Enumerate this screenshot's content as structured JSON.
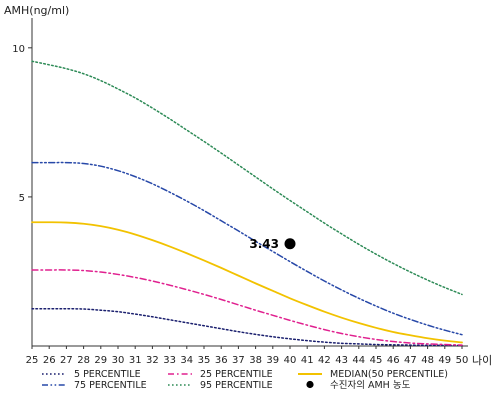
{
  "chart_data": {
    "type": "line",
    "ylabel": "AMH(ng/ml)",
    "xlabel": "나이",
    "x": [
      25,
      26,
      27,
      28,
      29,
      30,
      31,
      32,
      33,
      34,
      35,
      36,
      37,
      38,
      39,
      40,
      41,
      42,
      43,
      44,
      45,
      46,
      47,
      48,
      49,
      50
    ],
    "xlim": [
      25,
      50
    ],
    "ylim": [
      0,
      11
    ],
    "yticks": [
      5,
      10
    ],
    "grid": false,
    "legend_position": "bottom",
    "series": [
      {
        "name": "5 PERCENTILE",
        "color": "#1a1f6e",
        "dash": "dotted",
        "values": [
          1.25,
          1.25,
          1.25,
          1.24,
          1.2,
          1.15,
          1.07,
          0.98,
          0.88,
          0.78,
          0.68,
          0.58,
          0.48,
          0.39,
          0.31,
          0.24,
          0.18,
          0.13,
          0.09,
          0.07,
          0.05,
          0.04,
          0.03,
          0.02,
          0.02,
          0.02
        ]
      },
      {
        "name": "25 PERCENTILE",
        "color": "#e0208f",
        "dash": "dashdot",
        "values": [
          2.55,
          2.55,
          2.55,
          2.53,
          2.48,
          2.4,
          2.3,
          2.18,
          2.04,
          1.89,
          1.73,
          1.56,
          1.38,
          1.2,
          1.03,
          0.86,
          0.7,
          0.55,
          0.42,
          0.31,
          0.22,
          0.15,
          0.1,
          0.07,
          0.05,
          0.03
        ]
      },
      {
        "name": "MEDIAN(50 PERCENTILE)",
        "color": "#f2c200",
        "dash": "solid",
        "values": [
          4.15,
          4.15,
          4.14,
          4.1,
          4.02,
          3.9,
          3.74,
          3.55,
          3.34,
          3.11,
          2.87,
          2.62,
          2.36,
          2.1,
          1.85,
          1.6,
          1.37,
          1.15,
          0.95,
          0.77,
          0.61,
          0.47,
          0.36,
          0.26,
          0.18,
          0.12
        ]
      },
      {
        "name": "75 PERCENTILE",
        "color": "#2748a8",
        "dash": "dashdotdot",
        "values": [
          6.15,
          6.15,
          6.15,
          6.12,
          6.03,
          5.88,
          5.68,
          5.44,
          5.16,
          4.86,
          4.54,
          4.2,
          3.86,
          3.51,
          3.17,
          2.83,
          2.5,
          2.18,
          1.88,
          1.6,
          1.34,
          1.1,
          0.89,
          0.7,
          0.53,
          0.38
        ]
      },
      {
        "name": "95 PERCENTILE",
        "color": "#2e8b57",
        "dash": "dotted",
        "values": [
          9.55,
          9.43,
          9.3,
          9.13,
          8.9,
          8.62,
          8.32,
          7.98,
          7.62,
          7.24,
          6.86,
          6.47,
          6.07,
          5.67,
          5.27,
          4.88,
          4.5,
          4.12,
          3.76,
          3.41,
          3.08,
          2.77,
          2.48,
          2.21,
          1.96,
          1.73
        ]
      }
    ],
    "marker": {
      "name": "수진자의 AMH 농도",
      "x": 40,
      "y": 3.43,
      "label": "3.43",
      "color": "#000000"
    }
  }
}
